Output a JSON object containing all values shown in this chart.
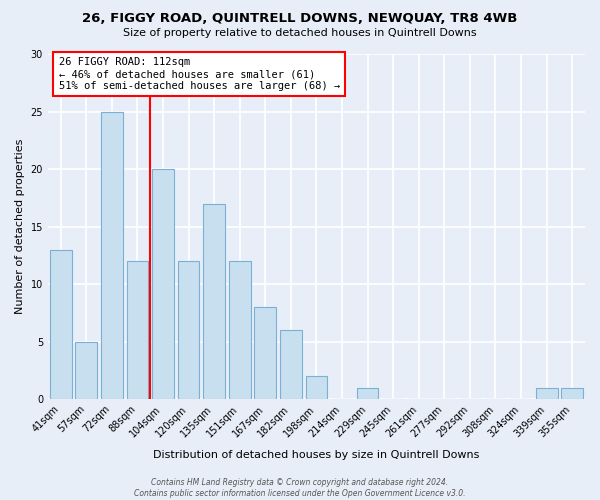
{
  "title": "26, FIGGY ROAD, QUINTRELL DOWNS, NEWQUAY, TR8 4WB",
  "subtitle": "Size of property relative to detached houses in Quintrell Downs",
  "xlabel": "Distribution of detached houses by size in Quintrell Downs",
  "ylabel": "Number of detached properties",
  "bar_labels": [
    "41sqm",
    "57sqm",
    "72sqm",
    "88sqm",
    "104sqm",
    "120sqm",
    "135sqm",
    "151sqm",
    "167sqm",
    "182sqm",
    "198sqm",
    "214sqm",
    "229sqm",
    "245sqm",
    "261sqm",
    "277sqm",
    "292sqm",
    "308sqm",
    "324sqm",
    "339sqm",
    "355sqm"
  ],
  "bar_values": [
    13,
    5,
    25,
    12,
    20,
    12,
    17,
    12,
    8,
    6,
    2,
    0,
    1,
    0,
    0,
    0,
    0,
    0,
    0,
    1,
    1
  ],
  "bar_color": "#c8dff0",
  "bar_edge_color": "#7bafd4",
  "vline_x_idx": 3.5,
  "vline_color": "red",
  "ylim": [
    0,
    30
  ],
  "annotation_text": "26 FIGGY ROAD: 112sqm\n← 46% of detached houses are smaller (61)\n51% of semi-detached houses are larger (68) →",
  "annotation_box_color": "white",
  "annotation_box_edge": "red",
  "footer_text": "Contains HM Land Registry data © Crown copyright and database right 2024.\nContains public sector information licensed under the Open Government Licence v3.0.",
  "bg_color": "#e8eef8"
}
